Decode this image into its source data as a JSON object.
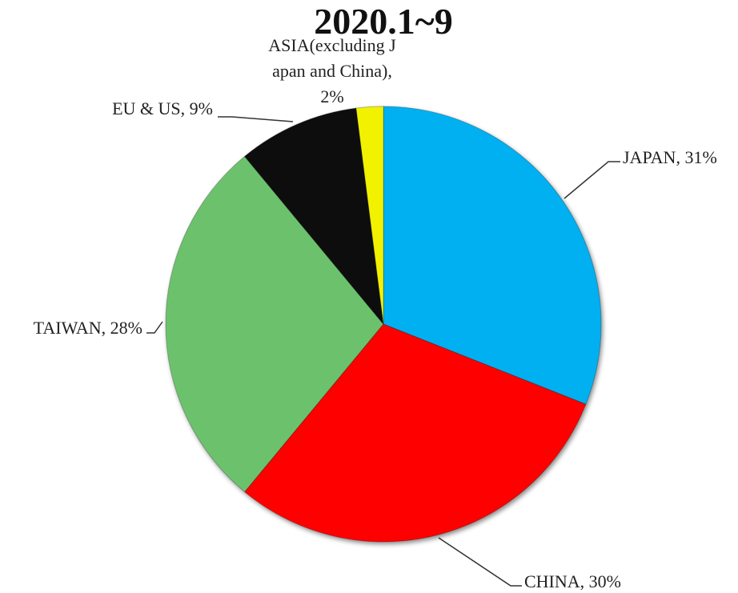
{
  "chart_data": {
    "type": "pie",
    "title": "2020.1~9",
    "values": [
      31,
      30,
      28,
      9,
      2
    ],
    "value_labels": [
      "JAPAN, 31%",
      "CHINA, 30%",
      "TAIWAN, 28%",
      "EU & US, 9%",
      "ASIA(excluding Japan and China), 2%"
    ],
    "colors": [
      "#00b0f0",
      "#ff0000",
      "#6cc26c",
      "#0a0a0a",
      "#f2f200"
    ]
  }
}
